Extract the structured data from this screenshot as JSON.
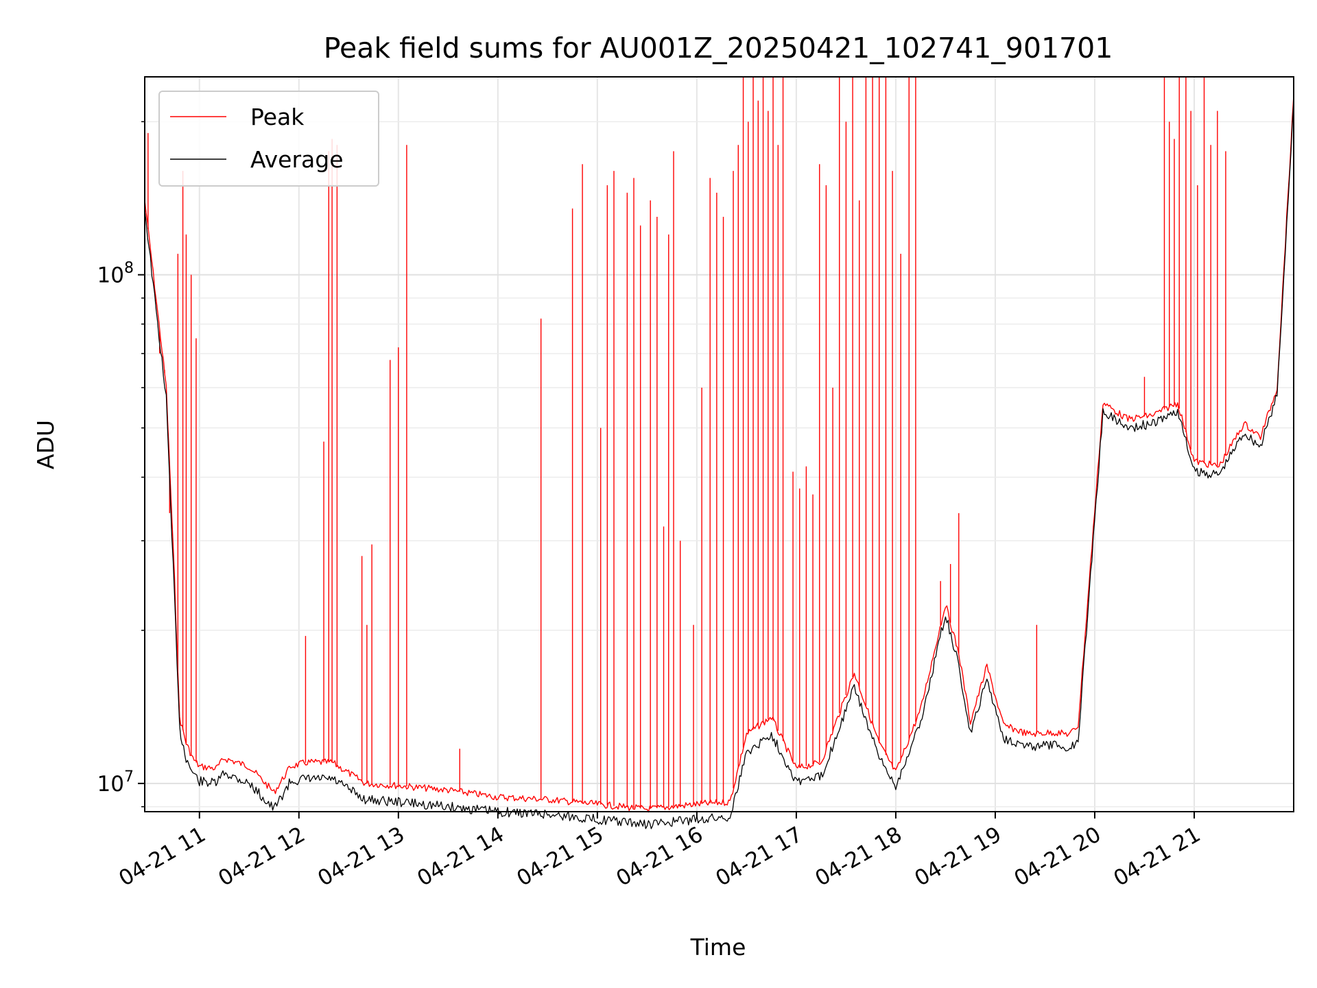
{
  "chart_data": {
    "type": "line",
    "title": "Peak field sums for AU001Z_20250421_102741_901701",
    "xlabel": "Time",
    "ylabel": "ADU",
    "y_scale": "log",
    "ylim": [
      8800000,
      245000000
    ],
    "xlim": [
      "2025-04-21 10:27",
      "2025-04-21 22:00"
    ],
    "grid": true,
    "grid_minor": true,
    "legend_position": "top-left",
    "x_ticks": [
      "2025-04-21 11:00",
      "2025-04-21 12:00",
      "2025-04-21 13:00",
      "2025-04-21 14:00",
      "2025-04-21 15:00",
      "2025-04-21 16:00",
      "2025-04-21 17:00",
      "2025-04-21 18:00",
      "2025-04-21 19:00",
      "2025-04-21 20:00",
      "2025-04-21 21:00"
    ],
    "x_tick_labels": [
      "04-21 11",
      "04-21 12",
      "04-21 13",
      "04-21 14",
      "04-21 15",
      "04-21 16",
      "04-21 17",
      "04-21 18",
      "04-21 19",
      "04-21 20",
      "04-21 21"
    ],
    "y_ticks": [
      10000000,
      100000000
    ],
    "y_tick_labels": [
      {
        "base": "10",
        "exp": "7"
      },
      {
        "base": "10",
        "exp": "8"
      }
    ],
    "series": [
      {
        "name": "Peak",
        "color": "#ff0000",
        "x": [
          "2025-04-21 10:27",
          "2025-04-21 10:33",
          "2025-04-21 10:40",
          "2025-04-21 10:45",
          "2025-04-21 10:48",
          "2025-04-21 10:52",
          "2025-04-21 10:56",
          "2025-04-21 11:00",
          "2025-04-21 11:10",
          "2025-04-21 11:15",
          "2025-04-21 11:30",
          "2025-04-21 11:45",
          "2025-04-21 11:55",
          "2025-04-21 12:05",
          "2025-04-21 12:20",
          "2025-04-21 12:40",
          "2025-04-21 13:00",
          "2025-04-21 13:30",
          "2025-04-21 14:00",
          "2025-04-21 14:30",
          "2025-04-21 15:00",
          "2025-04-21 15:30",
          "2025-04-21 16:00",
          "2025-04-21 16:20",
          "2025-04-21 16:30",
          "2025-04-21 16:45",
          "2025-04-21 17:00",
          "2025-04-21 17:15",
          "2025-04-21 17:35",
          "2025-04-21 17:50",
          "2025-04-21 18:00",
          "2025-04-21 18:15",
          "2025-04-21 18:30",
          "2025-04-21 18:38",
          "2025-04-21 18:45",
          "2025-04-21 18:55",
          "2025-04-21 19:05",
          "2025-04-21 19:20",
          "2025-04-21 19:35",
          "2025-04-21 19:45",
          "2025-04-21 19:50",
          "2025-04-21 20:05",
          "2025-04-21 20:20",
          "2025-04-21 20:35",
          "2025-04-21 20:50",
          "2025-04-21 21:00",
          "2025-04-21 21:15",
          "2025-04-21 21:30",
          "2025-04-21 21:40",
          "2025-04-21 21:50",
          "2025-04-21 22:00"
        ],
        "values": [
          140000000,
          95000000,
          60000000,
          25000000,
          13500000,
          12000000,
          11200000,
          10800000,
          10700000,
          11200000,
          10800000,
          9600000,
          10800000,
          11000000,
          11000000,
          10000000,
          9900000,
          9700000,
          9400000,
          9300000,
          9100000,
          8900000,
          9100000,
          9200000,
          12500000,
          13500000,
          10700000,
          11000000,
          16500000,
          12000000,
          10500000,
          14000000,
          22500000,
          18000000,
          13200000,
          17000000,
          13000000,
          12500000,
          12600000,
          12500000,
          13000000,
          56000000,
          52000000,
          53000000,
          56000000,
          43000000,
          42000000,
          51000000,
          48000000,
          60000000,
          225000000
        ],
        "spikes": [
          {
            "x": "2025-04-21 10:29",
            "y": 190000000
          },
          {
            "x": "2025-04-21 10:36",
            "y": 70000000
          },
          {
            "x": "2025-04-21 10:39",
            "y": 65000000
          },
          {
            "x": "2025-04-21 10:42",
            "y": 34000000
          },
          {
            "x": "2025-04-21 10:47",
            "y": 110000000
          },
          {
            "x": "2025-04-21 10:50",
            "y": 160000000
          },
          {
            "x": "2025-04-21 10:52",
            "y": 120000000
          },
          {
            "x": "2025-04-21 10:55",
            "y": 100000000
          },
          {
            "x": "2025-04-21 10:58",
            "y": 75000000
          },
          {
            "x": "2025-04-21 12:04",
            "y": 19500000
          },
          {
            "x": "2025-04-21 12:15",
            "y": 47000000
          },
          {
            "x": "2025-04-21 12:18",
            "y": 175000000
          },
          {
            "x": "2025-04-21 12:20",
            "y": 185000000
          },
          {
            "x": "2025-04-21 12:23",
            "y": 180000000
          },
          {
            "x": "2025-04-21 12:38",
            "y": 28000000
          },
          {
            "x": "2025-04-21 12:41",
            "y": 20500000
          },
          {
            "x": "2025-04-21 12:44",
            "y": 29500000
          },
          {
            "x": "2025-04-21 12:55",
            "y": 68000000
          },
          {
            "x": "2025-04-21 13:00",
            "y": 72000000
          },
          {
            "x": "2025-04-21 13:05",
            "y": 180000000
          },
          {
            "x": "2025-04-21 13:37",
            "y": 11700000
          },
          {
            "x": "2025-04-21 14:26",
            "y": 82000000
          },
          {
            "x": "2025-04-21 14:45",
            "y": 135000000
          },
          {
            "x": "2025-04-21 14:51",
            "y": 165000000
          },
          {
            "x": "2025-04-21 15:02",
            "y": 50000000
          },
          {
            "x": "2025-04-21 15:06",
            "y": 150000000
          },
          {
            "x": "2025-04-21 15:10",
            "y": 160000000
          },
          {
            "x": "2025-04-21 15:18",
            "y": 145000000
          },
          {
            "x": "2025-04-21 15:22",
            "y": 155000000
          },
          {
            "x": "2025-04-21 15:26",
            "y": 125000000
          },
          {
            "x": "2025-04-21 15:32",
            "y": 140000000
          },
          {
            "x": "2025-04-21 15:36",
            "y": 130000000
          },
          {
            "x": "2025-04-21 15:40",
            "y": 32000000
          },
          {
            "x": "2025-04-21 15:43",
            "y": 120000000
          },
          {
            "x": "2025-04-21 15:46",
            "y": 175000000
          },
          {
            "x": "2025-04-21 15:50",
            "y": 30000000
          },
          {
            "x": "2025-04-21 15:58",
            "y": 20500000
          },
          {
            "x": "2025-04-21 16:03",
            "y": 60000000
          },
          {
            "x": "2025-04-21 16:08",
            "y": 155000000
          },
          {
            "x": "2025-04-21 16:12",
            "y": 145000000
          },
          {
            "x": "2025-04-21 16:16",
            "y": 130000000
          },
          {
            "x": "2025-04-21 16:22",
            "y": 160000000
          },
          {
            "x": "2025-04-21 16:25",
            "y": 180000000
          },
          {
            "x": "2025-04-21 16:28",
            "y": 245000000
          },
          {
            "x": "2025-04-21 16:31",
            "y": 200000000
          },
          {
            "x": "2025-04-21 16:34",
            "y": 245000000
          },
          {
            "x": "2025-04-21 16:37",
            "y": 220000000
          },
          {
            "x": "2025-04-21 16:40",
            "y": 245000000
          },
          {
            "x": "2025-04-21 16:43",
            "y": 210000000
          },
          {
            "x": "2025-04-21 16:46",
            "y": 245000000
          },
          {
            "x": "2025-04-21 16:49",
            "y": 180000000
          },
          {
            "x": "2025-04-21 16:52",
            "y": 245000000
          },
          {
            "x": "2025-04-21 16:58",
            "y": 41000000
          },
          {
            "x": "2025-04-21 17:02",
            "y": 38000000
          },
          {
            "x": "2025-04-21 17:06",
            "y": 42000000
          },
          {
            "x": "2025-04-21 17:10",
            "y": 37000000
          },
          {
            "x": "2025-04-21 17:14",
            "y": 165000000
          },
          {
            "x": "2025-04-21 17:18",
            "y": 150000000
          },
          {
            "x": "2025-04-21 17:22",
            "y": 60000000
          },
          {
            "x": "2025-04-21 17:26",
            "y": 245000000
          },
          {
            "x": "2025-04-21 17:30",
            "y": 200000000
          },
          {
            "x": "2025-04-21 17:34",
            "y": 245000000
          },
          {
            "x": "2025-04-21 17:38",
            "y": 140000000
          },
          {
            "x": "2025-04-21 17:42",
            "y": 245000000
          },
          {
            "x": "2025-04-21 17:46",
            "y": 245000000
          },
          {
            "x": "2025-04-21 17:50",
            "y": 245000000
          },
          {
            "x": "2025-04-21 17:54",
            "y": 245000000
          },
          {
            "x": "2025-04-21 17:58",
            "y": 160000000
          },
          {
            "x": "2025-04-21 18:03",
            "y": 110000000
          },
          {
            "x": "2025-04-21 18:08",
            "y": 245000000
          },
          {
            "x": "2025-04-21 18:12",
            "y": 245000000
          },
          {
            "x": "2025-04-21 18:27",
            "y": 25000000
          },
          {
            "x": "2025-04-21 18:33",
            "y": 27000000
          },
          {
            "x": "2025-04-21 18:38",
            "y": 34000000
          },
          {
            "x": "2025-04-21 18:50",
            "y": 15000000
          },
          {
            "x": "2025-04-21 19:25",
            "y": 20500000
          },
          {
            "x": "2025-04-21 20:30",
            "y": 63000000
          },
          {
            "x": "2025-04-21 20:42",
            "y": 245000000
          },
          {
            "x": "2025-04-21 20:45",
            "y": 200000000
          },
          {
            "x": "2025-04-21 20:48",
            "y": 185000000
          },
          {
            "x": "2025-04-21 20:51",
            "y": 245000000
          },
          {
            "x": "2025-04-21 20:55",
            "y": 245000000
          },
          {
            "x": "2025-04-21 20:58",
            "y": 210000000
          },
          {
            "x": "2025-04-21 21:02",
            "y": 150000000
          },
          {
            "x": "2025-04-21 21:06",
            "y": 245000000
          },
          {
            "x": "2025-04-21 21:10",
            "y": 180000000
          },
          {
            "x": "2025-04-21 21:14",
            "y": 210000000
          },
          {
            "x": "2025-04-21 21:19",
            "y": 175000000
          }
        ]
      },
      {
        "name": "Average",
        "color": "#000000",
        "x": [
          "2025-04-21 10:27",
          "2025-04-21 10:33",
          "2025-04-21 10:40",
          "2025-04-21 10:45",
          "2025-04-21 10:48",
          "2025-04-21 10:52",
          "2025-04-21 10:56",
          "2025-04-21 11:00",
          "2025-04-21 11:10",
          "2025-04-21 11:15",
          "2025-04-21 11:30",
          "2025-04-21 11:45",
          "2025-04-21 11:55",
          "2025-04-21 12:05",
          "2025-04-21 12:20",
          "2025-04-21 12:40",
          "2025-04-21 13:00",
          "2025-04-21 13:30",
          "2025-04-21 14:00",
          "2025-04-21 14:30",
          "2025-04-21 15:00",
          "2025-04-21 15:30",
          "2025-04-21 16:00",
          "2025-04-21 16:20",
          "2025-04-21 16:30",
          "2025-04-21 16:45",
          "2025-04-21 17:00",
          "2025-04-21 17:15",
          "2025-04-21 17:35",
          "2025-04-21 17:50",
          "2025-04-21 18:00",
          "2025-04-21 18:15",
          "2025-04-21 18:30",
          "2025-04-21 18:38",
          "2025-04-21 18:45",
          "2025-04-21 18:55",
          "2025-04-21 19:05",
          "2025-04-21 19:20",
          "2025-04-21 19:35",
          "2025-04-21 19:45",
          "2025-04-21 19:50",
          "2025-04-21 20:05",
          "2025-04-21 20:20",
          "2025-04-21 20:35",
          "2025-04-21 20:50",
          "2025-04-21 21:00",
          "2025-04-21 21:15",
          "2025-04-21 21:30",
          "2025-04-21 21:40",
          "2025-04-21 21:50",
          "2025-04-21 22:00"
        ],
        "values": [
          135000000,
          90000000,
          57000000,
          23000000,
          12800000,
          11200000,
          10500000,
          10100000,
          10000000,
          10500000,
          10000000,
          8900000,
          10100000,
          10200000,
          10200000,
          9300000,
          9200000,
          9000000,
          8800000,
          8700000,
          8500000,
          8300000,
          8500000,
          8600000,
          11500000,
          12500000,
          10100000,
          10300000,
          15500000,
          11200000,
          9900000,
          13200000,
          21500000,
          17000000,
          12500000,
          16000000,
          12300000,
          11800000,
          11900000,
          11700000,
          12200000,
          54000000,
          50000000,
          51000000,
          54000000,
          41000000,
          40500000,
          49000000,
          46000000,
          58000000,
          220000000
        ]
      }
    ]
  }
}
